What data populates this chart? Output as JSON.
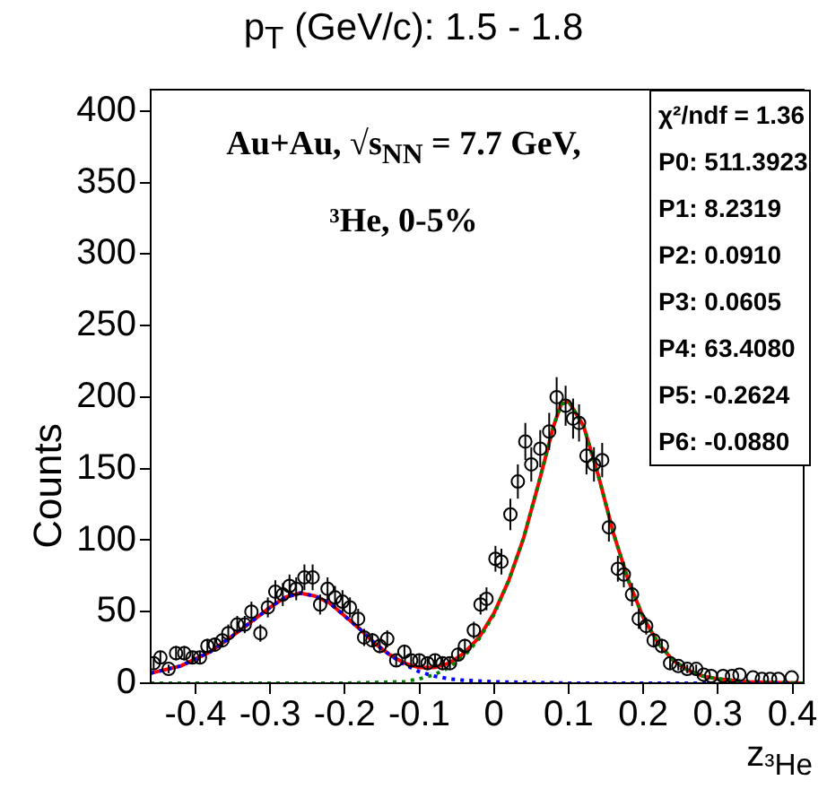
{
  "chart_data": {
    "type": "scatter",
    "title": "p$_{T}$ (GeV/c): 1.5 - 1.8",
    "xlabel": "z$_{³He}$",
    "ylabel": "Counts",
    "xlim": [
      -0.46,
      0.415
    ],
    "xticks": [
      -0.4,
      -0.3,
      -0.2,
      -0.1,
      0,
      0.1,
      0.2,
      0.3,
      0.4
    ],
    "ylim": [
      0,
      415
    ],
    "yticks": [
      0,
      50,
      100,
      150,
      200,
      250,
      300,
      350,
      400
    ],
    "annotations": [
      "Au+Au, √s$_{NN}$ = 7.7 GeV,",
      "³He, 0-5%",
      "χ²/ndf = 1.36",
      "P0: 511.3923",
      "P1: 8.2319",
      "P2: 0.0910",
      "P3: 0.0605",
      "P4: 63.4080",
      "P5: -0.2624",
      "P6: -0.0880"
    ],
    "series": [
      {
        "type": "scatter",
        "color": "#000000",
        "marker": "circle",
        "x": [
          -0.456,
          -0.447,
          -0.436,
          -0.426,
          -0.415,
          -0.404,
          -0.394,
          -0.384,
          -0.374,
          -0.364,
          -0.356,
          -0.344,
          -0.334,
          -0.325,
          -0.313,
          -0.303,
          -0.293,
          -0.283,
          -0.274,
          -0.265,
          -0.254,
          -0.243,
          -0.233,
          -0.223,
          -0.213,
          -0.203,
          -0.193,
          -0.182,
          -0.174,
          -0.163,
          -0.153,
          -0.143,
          -0.131,
          -0.12,
          -0.111,
          -0.1,
          -0.089,
          -0.079,
          -0.069,
          -0.059,
          -0.048,
          -0.039,
          -0.027,
          -0.018,
          -0.01,
          0.002,
          0.01,
          0.022,
          0.032,
          0.042,
          0.05,
          0.062,
          0.074,
          0.084,
          0.096,
          0.106,
          0.114,
          0.124,
          0.134,
          0.145,
          0.154,
          0.166,
          0.174,
          0.185,
          0.194,
          0.204,
          0.214,
          0.225,
          0.236,
          0.247,
          0.259,
          0.271,
          0.281,
          0.291,
          0.307,
          0.319,
          0.329,
          0.347,
          0.359,
          0.37,
          0.381,
          0.399
        ],
        "values": [
          14,
          18,
          10,
          21,
          21,
          18,
          18,
          26,
          27,
          30,
          35,
          41,
          41,
          50,
          35,
          53,
          64,
          62,
          68,
          66,
          74,
          74,
          55,
          66,
          60,
          57,
          53,
          45,
          32,
          30,
          26,
          31,
          16,
          22,
          16,
          16,
          14,
          16,
          14,
          14,
          20,
          26,
          37,
          55,
          59,
          87,
          85,
          118,
          141,
          169,
          153,
          164,
          176,
          200,
          194,
          185,
          182,
          159,
          153,
          156,
          109,
          80,
          76,
          62,
          45,
          40,
          30,
          26,
          14,
          12,
          10,
          10,
          6,
          5,
          5,
          5,
          6,
          4,
          3,
          3,
          3,
          4
        ],
        "errors": [
          4,
          4,
          3,
          5,
          5,
          4,
          4,
          5,
          5,
          5,
          6,
          6,
          6,
          7,
          6,
          7,
          8,
          8,
          8,
          8,
          9,
          9,
          7,
          8,
          8,
          8,
          7,
          7,
          6,
          5,
          5,
          6,
          4,
          5,
          4,
          4,
          4,
          4,
          4,
          4,
          4,
          5,
          6,
          7,
          8,
          9,
          9,
          11,
          12,
          13,
          12,
          13,
          13,
          14,
          14,
          14,
          13,
          13,
          12,
          12,
          10,
          9,
          9,
          8,
          7,
          6,
          5,
          5,
          4,
          3,
          3,
          3,
          null,
          null,
          null,
          null,
          null,
          null,
          null,
          null,
          null,
          null
        ]
      },
      {
        "type": "line",
        "color": "#008000",
        "marker": "none",
        "line_style": "dotted",
        "x": [
          -0.46,
          -0.2,
          -0.12,
          -0.1,
          -0.08,
          -0.06,
          -0.04,
          -0.02,
          0,
          0.02,
          0.04,
          0.06,
          0.08,
          0.09,
          0.1,
          0.12,
          0.14,
          0.16,
          0.18,
          0.2,
          0.22,
          0.24,
          0.26,
          0.28,
          0.3,
          0.34,
          0.415
        ],
        "values": [
          0,
          0,
          1,
          3,
          6,
          11,
          19,
          31,
          48,
          72,
          102,
          140,
          180,
          195,
          197,
          180,
          145,
          105,
          72,
          46,
          28,
          16,
          9,
          5,
          3,
          1,
          0
        ]
      },
      {
        "type": "line",
        "color": "#0000ff",
        "marker": "none",
        "line_style": "dotted",
        "x": [
          -0.46,
          -0.42,
          -0.38,
          -0.34,
          -0.3,
          -0.28,
          -0.26,
          -0.24,
          -0.22,
          -0.2,
          -0.18,
          -0.16,
          -0.14,
          -0.12,
          -0.1,
          -0.08,
          -0.06,
          -0.04,
          0,
          0.1,
          0.415
        ],
        "values": [
          7,
          12,
          22,
          37,
          53,
          60,
          63,
          61,
          56,
          47,
          38,
          28,
          20,
          13,
          8,
          5,
          3,
          2,
          1,
          0,
          0
        ]
      },
      {
        "type": "line",
        "color": "#ff0000",
        "marker": "none",
        "line_style": "solid",
        "x": [
          -0.46,
          -0.42,
          -0.38,
          -0.34,
          -0.3,
          -0.28,
          -0.26,
          -0.24,
          -0.22,
          -0.2,
          -0.18,
          -0.16,
          -0.14,
          -0.12,
          -0.1,
          -0.08,
          -0.06,
          -0.04,
          -0.02,
          0,
          0.02,
          0.04,
          0.06,
          0.08,
          0.09,
          0.1,
          0.12,
          0.14,
          0.16,
          0.18,
          0.2,
          0.22,
          0.24,
          0.26,
          0.28,
          0.3,
          0.34,
          0.415
        ],
        "values": [
          7,
          12,
          22,
          37,
          53,
          60,
          63,
          61,
          56,
          47,
          38,
          28,
          20,
          14,
          11,
          11,
          14,
          21,
          32,
          49,
          72,
          102,
          140,
          180,
          195,
          197,
          180,
          145,
          105,
          72,
          46,
          28,
          16,
          9,
          5,
          3,
          1,
          0
        ]
      }
    ]
  }
}
